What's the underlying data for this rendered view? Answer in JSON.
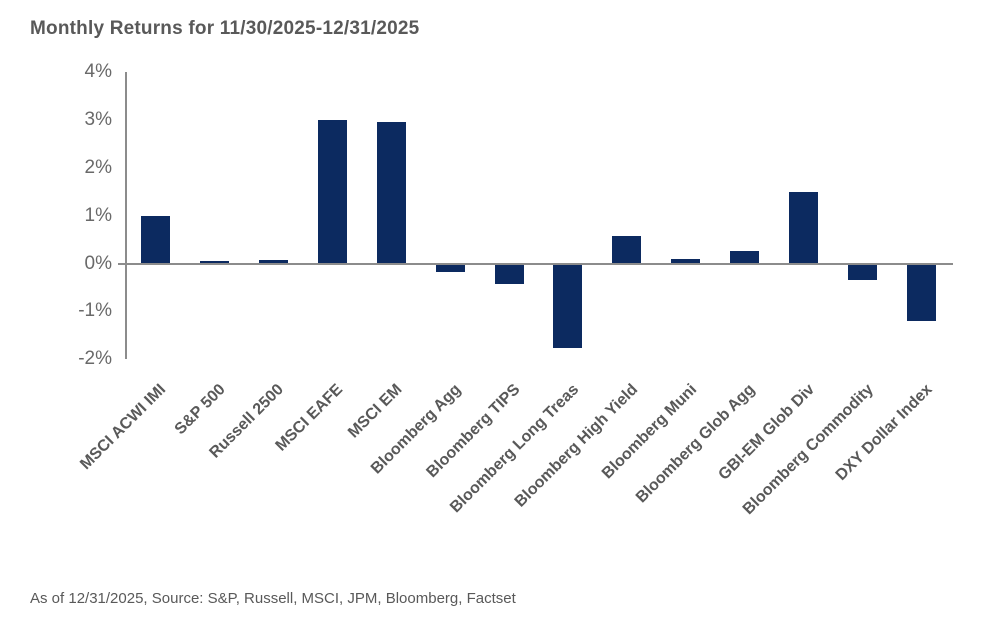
{
  "title": "Monthly Returns for 11/30/2025-12/31/2025",
  "footer": "As of 12/31/2025, Source: S&P, Russell, MSCI, JPM, Bloomberg, Factset",
  "colors": {
    "bar": "#0c2a60",
    "axis": "#8c8c8c",
    "title_text": "#595959",
    "tick_text": "#696969"
  },
  "chart_data": {
    "type": "bar",
    "title": "Monthly Returns for 11/30/2025-12/31/2025",
    "categories": [
      "MSCI ACWI IMI",
      "S&P 500",
      "Russell 2500",
      "MSCI EAFE",
      "MSCI EM",
      "Bloomberg Agg",
      "Bloomberg TIPS",
      "Bloomberg Long Treas",
      "Bloomberg High Yield",
      "Bloomberg Muni",
      "Bloomberg Glob Agg",
      "GBI-EM Glob Div",
      "Bloomberg Commodity",
      "DXY Dollar Index"
    ],
    "values": [
      1.0,
      0.05,
      0.08,
      3.0,
      2.97,
      -0.15,
      -0.4,
      -1.75,
      0.57,
      0.1,
      0.27,
      1.5,
      -0.32,
      -1.18
    ],
    "unit": "%",
    "xlabel": "",
    "ylabel": "",
    "ylim": [
      -2,
      4
    ],
    "yticks": [
      4,
      3,
      2,
      1,
      0,
      -1,
      -2
    ],
    "ytick_labels": [
      "4%",
      "3%",
      "2%",
      "1%",
      "0%",
      "-1%",
      "-2%"
    ],
    "grid": false,
    "legend_position": "none",
    "source_note": "As of 12/31/2025, Source: S&P, Russell, MSCI, JPM, Bloomberg, Factset"
  }
}
